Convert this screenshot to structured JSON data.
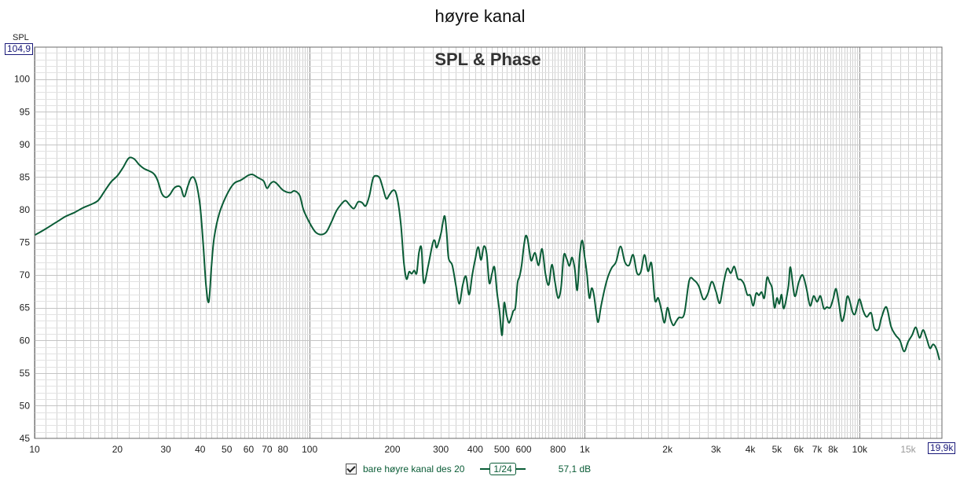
{
  "window": {
    "title": "høyre kanal"
  },
  "y_axis": {
    "label": "SPL",
    "max_box": "104,9"
  },
  "x_axis": {
    "max_box": "19,9k"
  },
  "legend": {
    "checked": true,
    "name": "bare høyre kanal des 20",
    "smoothing": "1/24",
    "level": "57,1 dB"
  },
  "colors": {
    "trace": "#0a5c36",
    "grid_minor": "#d2d2d2",
    "grid_major": "#8c8c8c",
    "dim_label": "#9a9a9a"
  },
  "chart_data": {
    "type": "line",
    "title": "SPL & Phase",
    "xscale": "log",
    "xlim": [
      10,
      19900
    ],
    "ylim": [
      45,
      104.9
    ],
    "grid": true,
    "x_ticks": [
      {
        "v": 10,
        "label": "10"
      },
      {
        "v": 20,
        "label": "20"
      },
      {
        "v": 30,
        "label": "30"
      },
      {
        "v": 40,
        "label": "40"
      },
      {
        "v": 50,
        "label": "50"
      },
      {
        "v": 60,
        "label": "60"
      },
      {
        "v": 70,
        "label": "70"
      },
      {
        "v": 80,
        "label": "80"
      },
      {
        "v": 100,
        "label": "100"
      },
      {
        "v": 200,
        "label": "200"
      },
      {
        "v": 300,
        "label": "300"
      },
      {
        "v": 400,
        "label": "400"
      },
      {
        "v": 500,
        "label": "500"
      },
      {
        "v": 600,
        "label": "600"
      },
      {
        "v": 800,
        "label": "800"
      },
      {
        "v": 1000,
        "label": "1k"
      },
      {
        "v": 2000,
        "label": "2k"
      },
      {
        "v": 3000,
        "label": "3k"
      },
      {
        "v": 4000,
        "label": "4k"
      },
      {
        "v": 5000,
        "label": "5k"
      },
      {
        "v": 6000,
        "label": "6k"
      },
      {
        "v": 7000,
        "label": "7k"
      },
      {
        "v": 8000,
        "label": "8k"
      },
      {
        "v": 10000,
        "label": "10k"
      },
      {
        "v": 15000,
        "label": "15k",
        "dim": true
      }
    ],
    "y_ticks": [
      {
        "v": 100,
        "label": "100"
      },
      {
        "v": 95,
        "label": "95"
      },
      {
        "v": 90,
        "label": "90"
      },
      {
        "v": 85,
        "label": "85"
      },
      {
        "v": 80,
        "label": "80"
      },
      {
        "v": 75,
        "label": "75"
      },
      {
        "v": 70,
        "label": "70"
      },
      {
        "v": 65,
        "label": "65"
      },
      {
        "v": 60,
        "label": "60"
      },
      {
        "v": 55,
        "label": "55"
      },
      {
        "v": 50,
        "label": "50"
      },
      {
        "v": 45,
        "label": "45"
      }
    ],
    "series": [
      {
        "color": "#0a5c36",
        "points": [
          [
            10,
            76.1
          ],
          [
            11,
            77.1
          ],
          [
            12,
            78.1
          ],
          [
            13,
            79.0
          ],
          [
            14,
            79.6
          ],
          [
            15,
            80.3
          ],
          [
            16,
            80.8
          ],
          [
            17,
            81.4
          ],
          [
            18,
            82.9
          ],
          [
            19,
            84.3
          ],
          [
            20,
            85.2
          ],
          [
            21,
            86.5
          ],
          [
            22,
            87.9
          ],
          [
            23,
            87.8
          ],
          [
            24,
            86.9
          ],
          [
            25,
            86.3
          ],
          [
            27,
            85.6
          ],
          [
            28,
            84.5
          ],
          [
            29,
            82.5
          ],
          [
            30,
            81.9
          ],
          [
            31,
            82.3
          ],
          [
            32,
            83.2
          ],
          [
            33,
            83.6
          ],
          [
            34,
            83.4
          ],
          [
            35,
            82.0
          ],
          [
            36,
            83.5
          ],
          [
            37,
            84.8
          ],
          [
            38,
            84.9
          ],
          [
            39,
            83.5
          ],
          [
            40,
            80.5
          ],
          [
            41,
            75.0
          ],
          [
            42,
            68.5
          ],
          [
            43,
            65.9
          ],
          [
            44,
            71.5
          ],
          [
            45,
            75.8
          ],
          [
            47,
            79.5
          ],
          [
            50,
            82.3
          ],
          [
            53,
            84.0
          ],
          [
            56,
            84.5
          ],
          [
            58,
            84.9
          ],
          [
            60,
            85.3
          ],
          [
            62,
            85.4
          ],
          [
            65,
            84.9
          ],
          [
            68,
            84.4
          ],
          [
            70,
            83.3
          ],
          [
            72,
            84.0
          ],
          [
            74,
            84.3
          ],
          [
            76,
            84.0
          ],
          [
            80,
            83.0
          ],
          [
            85,
            82.6
          ],
          [
            88,
            82.9
          ],
          [
            92,
            82.2
          ],
          [
            95,
            80.0
          ],
          [
            100,
            78.0
          ],
          [
            105,
            76.6
          ],
          [
            110,
            76.2
          ],
          [
            115,
            76.6
          ],
          [
            120,
            78.1
          ],
          [
            125,
            79.8
          ],
          [
            130,
            80.8
          ],
          [
            135,
            81.4
          ],
          [
            140,
            80.7
          ],
          [
            145,
            80.2
          ],
          [
            150,
            81.2
          ],
          [
            155,
            81.1
          ],
          [
            160,
            80.6
          ],
          [
            165,
            82.2
          ],
          [
            170,
            84.8
          ],
          [
            175,
            85.2
          ],
          [
            180,
            84.8
          ],
          [
            185,
            83.2
          ],
          [
            190,
            81.7
          ],
          [
            195,
            82.3
          ],
          [
            200,
            82.9
          ],
          [
            205,
            82.8
          ],
          [
            210,
            81.0
          ],
          [
            215,
            77.5
          ],
          [
            220,
            72.0
          ],
          [
            225,
            69.4
          ],
          [
            230,
            70.5
          ],
          [
            235,
            70.2
          ],
          [
            240,
            70.7
          ],
          [
            245,
            70.3
          ],
          [
            250,
            73.5
          ],
          [
            255,
            74.1
          ],
          [
            260,
            68.8
          ],
          [
            270,
            71.5
          ],
          [
            280,
            74.8
          ],
          [
            285,
            75.3
          ],
          [
            290,
            74.2
          ],
          [
            300,
            76.3
          ],
          [
            305,
            78.0
          ],
          [
            310,
            79.0
          ],
          [
            315,
            76.4
          ],
          [
            320,
            72.6
          ],
          [
            330,
            71.5
          ],
          [
            340,
            68.5
          ],
          [
            350,
            65.6
          ],
          [
            360,
            68.4
          ],
          [
            370,
            69.8
          ],
          [
            380,
            67.0
          ],
          [
            390,
            70.0
          ],
          [
            400,
            72.4
          ],
          [
            410,
            74.3
          ],
          [
            420,
            72.3
          ],
          [
            430,
            74.4
          ],
          [
            440,
            73.3
          ],
          [
            450,
            68.8
          ],
          [
            460,
            70.2
          ],
          [
            470,
            71.2
          ],
          [
            480,
            67.4
          ],
          [
            490,
            64.5
          ],
          [
            500,
            60.8
          ],
          [
            505,
            63.0
          ],
          [
            510,
            65.8
          ],
          [
            520,
            63.9
          ],
          [
            530,
            62.7
          ],
          [
            540,
            63.4
          ],
          [
            550,
            64.5
          ],
          [
            560,
            65.1
          ],
          [
            570,
            68.8
          ],
          [
            580,
            69.8
          ],
          [
            590,
            71.5
          ],
          [
            600,
            74.2
          ],
          [
            610,
            76.0
          ],
          [
            620,
            75.5
          ],
          [
            630,
            73.6
          ],
          [
            640,
            72.2
          ],
          [
            660,
            73.4
          ],
          [
            680,
            71.5
          ],
          [
            700,
            74.0
          ],
          [
            720,
            70.2
          ],
          [
            740,
            68.5
          ],
          [
            760,
            71.6
          ],
          [
            780,
            68.9
          ],
          [
            800,
            66.5
          ],
          [
            820,
            68.0
          ],
          [
            840,
            73.0
          ],
          [
            860,
            72.5
          ],
          [
            880,
            71.4
          ],
          [
            900,
            72.7
          ],
          [
            920,
            71.0
          ],
          [
            940,
            67.7
          ],
          [
            960,
            73.1
          ],
          [
            980,
            75.3
          ],
          [
            1000,
            72.8
          ],
          [
            1020,
            70.0
          ],
          [
            1040,
            66.5
          ],
          [
            1060,
            68.0
          ],
          [
            1080,
            67.0
          ],
          [
            1100,
            64.5
          ],
          [
            1120,
            62.8
          ],
          [
            1150,
            65.5
          ],
          [
            1200,
            69.0
          ],
          [
            1250,
            71.0
          ],
          [
            1300,
            72.0
          ],
          [
            1350,
            74.4
          ],
          [
            1400,
            72.0
          ],
          [
            1450,
            71.5
          ],
          [
            1500,
            73.1
          ],
          [
            1550,
            70.3
          ],
          [
            1600,
            70.5
          ],
          [
            1650,
            73.1
          ],
          [
            1700,
            70.6
          ],
          [
            1750,
            71.8
          ],
          [
            1800,
            66.2
          ],
          [
            1850,
            66.5
          ],
          [
            1900,
            64.7
          ],
          [
            1950,
            62.7
          ],
          [
            2000,
            65.0
          ],
          [
            2050,
            63.3
          ],
          [
            2100,
            62.3
          ],
          [
            2150,
            62.9
          ],
          [
            2200,
            63.5
          ],
          [
            2300,
            64.0
          ],
          [
            2400,
            69.2
          ],
          [
            2500,
            69.2
          ],
          [
            2600,
            68.3
          ],
          [
            2700,
            66.3
          ],
          [
            2800,
            67.1
          ],
          [
            2900,
            69.0
          ],
          [
            3000,
            67.5
          ],
          [
            3100,
            65.7
          ],
          [
            3200,
            68.8
          ],
          [
            3300,
            71.0
          ],
          [
            3400,
            70.3
          ],
          [
            3500,
            71.3
          ],
          [
            3600,
            69.5
          ],
          [
            3700,
            69.3
          ],
          [
            3800,
            68.6
          ],
          [
            3900,
            67.0
          ],
          [
            4000,
            66.9
          ],
          [
            4100,
            65.3
          ],
          [
            4200,
            67.2
          ],
          [
            4300,
            66.9
          ],
          [
            4400,
            67.4
          ],
          [
            4500,
            66.5
          ],
          [
            4600,
            69.6
          ],
          [
            4700,
            68.9
          ],
          [
            4800,
            68.0
          ],
          [
            4900,
            65.0
          ],
          [
            5000,
            66.5
          ],
          [
            5100,
            65.6
          ],
          [
            5200,
            67.0
          ],
          [
            5300,
            64.9
          ],
          [
            5500,
            68.2
          ],
          [
            5600,
            71.2
          ],
          [
            5800,
            66.8
          ],
          [
            6000,
            68.9
          ],
          [
            6200,
            70.0
          ],
          [
            6400,
            68.0
          ],
          [
            6600,
            65.3
          ],
          [
            6800,
            66.8
          ],
          [
            7000,
            65.9
          ],
          [
            7200,
            66.8
          ],
          [
            7400,
            64.9
          ],
          [
            7600,
            65.1
          ],
          [
            7800,
            65.0
          ],
          [
            8000,
            66.3
          ],
          [
            8200,
            67.9
          ],
          [
            8400,
            65.6
          ],
          [
            8600,
            63.0
          ],
          [
            8800,
            64.0
          ],
          [
            9000,
            66.7
          ],
          [
            9200,
            66.0
          ],
          [
            9400,
            64.4
          ],
          [
            9600,
            64.0
          ],
          [
            9800,
            65.3
          ],
          [
            10000,
            66.3
          ],
          [
            10300,
            64.5
          ],
          [
            10600,
            63.6
          ],
          [
            11000,
            64.2
          ],
          [
            11300,
            61.9
          ],
          [
            11700,
            61.7
          ],
          [
            12000,
            63.5
          ],
          [
            12500,
            65.1
          ],
          [
            13000,
            62.1
          ],
          [
            13500,
            60.8
          ],
          [
            14000,
            60.0
          ],
          [
            14500,
            58.3
          ],
          [
            15000,
            59.8
          ],
          [
            15500,
            60.8
          ],
          [
            16000,
            62.0
          ],
          [
            16500,
            60.4
          ],
          [
            17000,
            61.6
          ],
          [
            17500,
            60.3
          ],
          [
            18000,
            58.8
          ],
          [
            18500,
            59.4
          ],
          [
            19000,
            58.7
          ],
          [
            19500,
            57.0
          ]
        ]
      }
    ]
  }
}
